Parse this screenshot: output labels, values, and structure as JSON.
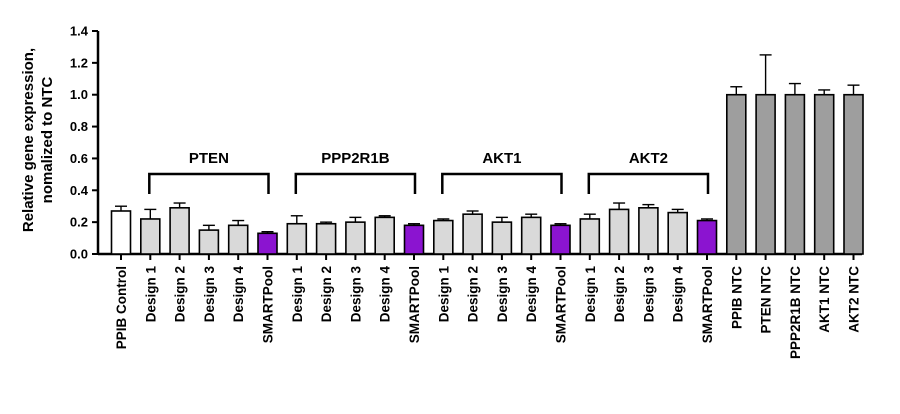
{
  "chart_data": {
    "type": "bar",
    "ylabel": "Relative gene expression, nomalized to NTC",
    "ylabel_lines": [
      "Relative gene expression,",
      "nomalized to NTC"
    ],
    "ylim": [
      0,
      1.4
    ],
    "yticks": [
      "0.0",
      "0.2",
      "0.4",
      "0.6",
      "0.8",
      "1.0",
      "1.2",
      "1.4"
    ],
    "grid": false,
    "categories": [
      "PPIB Control",
      "Design 1",
      "Design 2",
      "Design 3",
      "Design 4",
      "SMARTPool",
      "Design 1",
      "Design 2",
      "Design 3",
      "Design 4",
      "SMARTPool",
      "Design 1",
      "Design 2",
      "Design 3",
      "Design 4",
      "SMARTPool",
      "Design 1",
      "Design 2",
      "Design 3",
      "Design 4",
      "SMARTPool",
      "PPIB NTC",
      "PTEN NTC",
      "PPP2R1B NTC",
      "AKT1 NTC",
      "AKT2 NTC"
    ],
    "values": [
      0.27,
      0.22,
      0.29,
      0.15,
      0.18,
      0.13,
      0.19,
      0.19,
      0.2,
      0.23,
      0.18,
      0.21,
      0.25,
      0.2,
      0.23,
      0.18,
      0.22,
      0.28,
      0.29,
      0.26,
      0.21,
      1.0,
      1.0,
      1.0,
      1.0,
      1.0
    ],
    "errors": [
      0.03,
      0.06,
      0.03,
      0.03,
      0.03,
      0.01,
      0.05,
      0.01,
      0.03,
      0.01,
      0.01,
      0.01,
      0.02,
      0.03,
      0.02,
      0.01,
      0.03,
      0.04,
      0.02,
      0.02,
      0.01,
      0.05,
      0.25,
      0.07,
      0.03,
      0.06
    ],
    "bar_kinds": [
      "white",
      "light",
      "light",
      "light",
      "light",
      "purple",
      "light",
      "light",
      "light",
      "light",
      "purple",
      "light",
      "light",
      "light",
      "light",
      "purple",
      "light",
      "light",
      "light",
      "light",
      "purple",
      "dark",
      "dark",
      "dark",
      "dark",
      "dark"
    ],
    "colors": {
      "white": "#ffffff",
      "light": "#d9d9d9",
      "purple": "#8b14d0",
      "dark": "#9e9e9e",
      "outline": "#000000"
    },
    "groups": [
      {
        "label": "PTEN",
        "start": 1,
        "end": 5
      },
      {
        "label": "PPP2R1B",
        "start": 6,
        "end": 10
      },
      {
        "label": "AKT1",
        "start": 11,
        "end": 15
      },
      {
        "label": "AKT2",
        "start": 16,
        "end": 20
      }
    ]
  }
}
